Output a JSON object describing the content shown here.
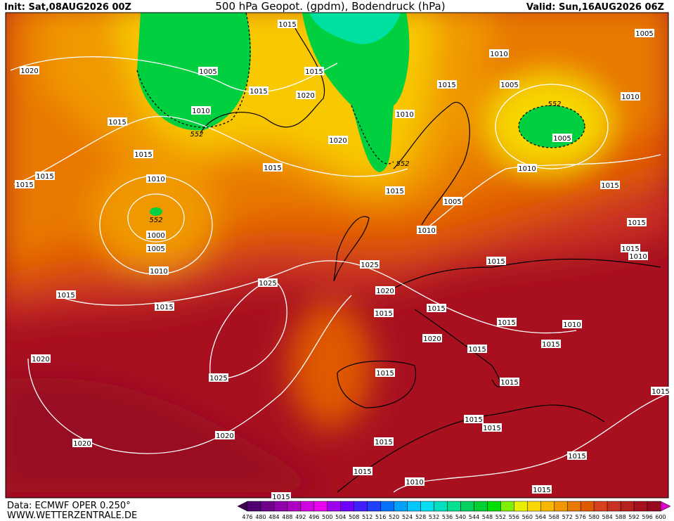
{
  "header": {
    "init": "Init: Sat,08AUG2026 00Z",
    "title": "500 hPa Geopot. (gpdm), Bodendruck (hPa)",
    "valid": "Valid: Sun,16AUG2026 06Z"
  },
  "footer": {
    "source": "Data: ECMWF OPER 0.250°",
    "url": "WWW.WETTERZENTRALE.DE"
  },
  "isobar_labels": [
    "1015",
    "1005",
    "1010",
    "1020",
    "1005",
    "1015",
    "1015",
    "1005",
    "1015",
    "1020",
    "1010",
    "1010",
    "1010",
    "1015",
    "1005",
    "1020",
    "1015",
    "1015",
    "1010",
    "1015",
    "1010",
    "1015",
    "1015",
    "1015",
    "1005",
    "1015",
    "1010",
    "1000",
    "1005",
    "1015",
    "1010",
    "1015",
    "1025",
    "1010",
    "1025",
    "1020",
    "1015",
    "1015",
    "1015",
    "1015",
    "1015",
    "1010",
    "1020",
    "1015",
    "1015",
    "1020",
    "1015",
    "1025",
    "1015",
    "1015",
    "1015",
    "1015",
    "1020",
    "1015",
    "1020",
    "1015",
    "1015",
    "1010",
    "1015",
    "1015"
  ],
  "geopotential_labels": [
    "552",
    "552",
    "552",
    "552"
  ],
  "colorbar": {
    "labels": [
      476,
      480,
      484,
      488,
      492,
      496,
      500,
      504,
      508,
      512,
      516,
      520,
      524,
      528,
      532,
      536,
      540,
      544,
      548,
      552,
      556,
      560,
      564,
      568,
      572,
      576,
      580,
      584,
      588,
      592,
      596,
      600
    ],
    "colors": [
      "#500070",
      "#70008c",
      "#9000a8",
      "#b000c4",
      "#d000e0",
      "#e800f0",
      "#a000f0",
      "#7000ff",
      "#4020ff",
      "#2040ff",
      "#0070ff",
      "#00a0ff",
      "#00c8ff",
      "#00e0f0",
      "#00e0c0",
      "#00e090",
      "#00d060",
      "#00d030",
      "#00e000",
      "#80f000",
      "#e8f000",
      "#f8d800",
      "#f8b800",
      "#f09800",
      "#e87800",
      "#e05800",
      "#d84020",
      "#c83020",
      "#b82020",
      "#a81020",
      "#980820"
    ]
  }
}
